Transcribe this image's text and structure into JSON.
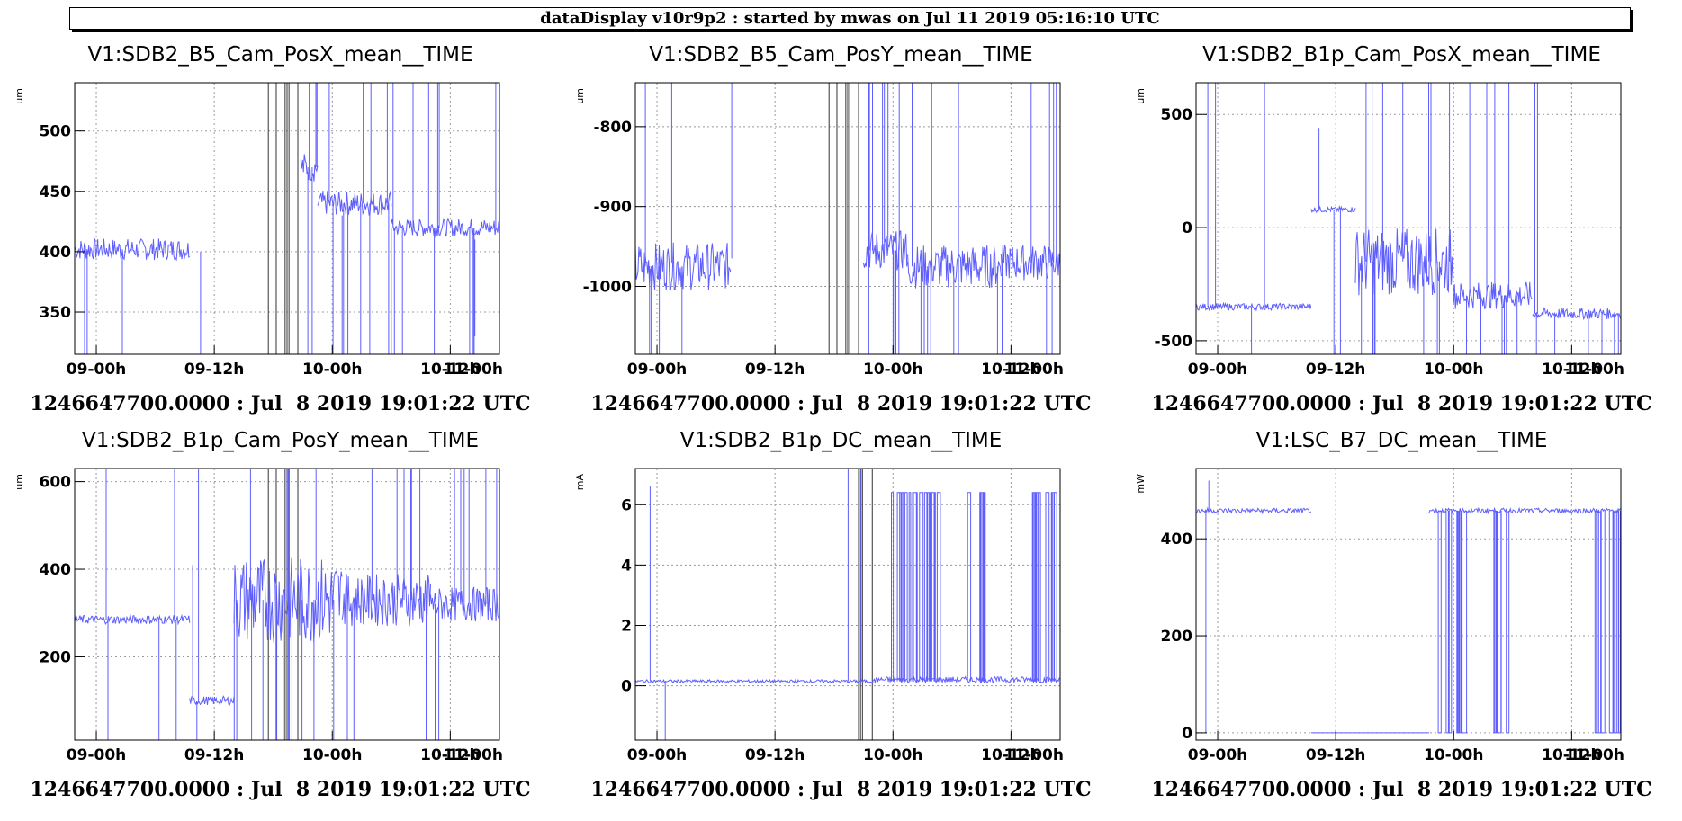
{
  "header": {
    "title": "dataDisplay v10r9p2 : started by mwas on Jul 11 2019 05:16:10 UTC"
  },
  "colors": {
    "series": "#5e5eff",
    "marker": "#555555",
    "grid": "#9a9a9a"
  },
  "chart_data": [
    {
      "type": "line",
      "title": "V1:SDB2_B5_Cam_PosX_mean__TIME",
      "ylabel": "um",
      "footer": "1246647700.0000 : Jul  8 2019 19:01:22 UTC",
      "xlim": [
        -2.2,
        41
      ],
      "ylim": [
        315,
        540
      ],
      "xticks": [
        {
          "value": 0,
          "label": "09-00h"
        },
        {
          "value": 12,
          "label": "09-12h"
        },
        {
          "value": 24,
          "label": "10-00h"
        },
        {
          "value": 36,
          "label": "10-12h"
        },
        {
          "value": 48,
          "label": "11-00h"
        }
      ],
      "yticks": [
        350,
        400,
        450,
        500
      ],
      "markers": [
        17.5,
        18.3,
        19.2,
        19.4,
        19.6,
        20.5
      ],
      "segments": [
        {
          "x": [
            -2.2,
            9.5
          ],
          "level": 402,
          "band": 18,
          "spikes": 4
        },
        {
          "x": [
            9.5,
            24.0
          ],
          "level": null,
          "band": 0,
          "spikes": 0
        },
        {
          "x": [
            20.8,
            22.5
          ],
          "level": 470,
          "band": 25,
          "spikes": 6
        },
        {
          "x": [
            22.5,
            30.0
          ],
          "level": 440,
          "band": 20,
          "spikes": 10
        },
        {
          "x": [
            30.0,
            41.0
          ],
          "level": 420,
          "band": 15,
          "spikes": 12
        }
      ],
      "spikes": [
        {
          "x": 10.6,
          "from": 400,
          "to": 315
        },
        {
          "x": 25.0,
          "from": 430,
          "to": 315
        },
        {
          "x": 33.8,
          "from": 420,
          "to": 540
        },
        {
          "x": 38.5,
          "from": 410,
          "to": 330
        }
      ]
    },
    {
      "type": "line",
      "title": "V1:SDB2_B5_Cam_PosY_mean__TIME",
      "ylabel": "um",
      "footer": "1246647700.0000 : Jul  8 2019 19:01:22 UTC",
      "xlim": [
        -2.2,
        41
      ],
      "ylim": [
        -1085,
        -745
      ],
      "xticks": [
        {
          "value": 0,
          "label": "09-00h"
        },
        {
          "value": 12,
          "label": "09-12h"
        },
        {
          "value": 24,
          "label": "10-00h"
        },
        {
          "value": 36,
          "label": "10-12h"
        },
        {
          "value": 48,
          "label": "11-00h"
        }
      ],
      "yticks": [
        -1000,
        -900,
        -800
      ],
      "markers": [
        17.5,
        18.3,
        19.2,
        19.4,
        19.6,
        20.5
      ],
      "segments": [
        {
          "x": [
            -2.2,
            7.5
          ],
          "level": -975,
          "band": 60,
          "spikes": 6
        },
        {
          "x": [
            7.5,
            21.0
          ],
          "level": null,
          "band": 0,
          "spikes": 0
        },
        {
          "x": [
            21.0,
            25.5
          ],
          "level": -955,
          "band": 50,
          "spikes": 12
        },
        {
          "x": [
            25.5,
            35.0
          ],
          "level": -975,
          "band": 55,
          "spikes": 10
        },
        {
          "x": [
            35.0,
            41.0
          ],
          "level": -970,
          "band": 45,
          "spikes": 8
        }
      ],
      "spikes": [
        {
          "x": 1.5,
          "from": -970,
          "to": -745
        },
        {
          "x": 7.6,
          "from": -965,
          "to": -745
        }
      ]
    },
    {
      "type": "line",
      "title": "V1:SDB2_B1p_Cam_PosX_mean__TIME",
      "ylabel": "um",
      "footer": "1246647700.0000 : Jul  8 2019 19:01:22 UTC",
      "xlim": [
        -2.2,
        41
      ],
      "ylim": [
        -560,
        640
      ],
      "xticks": [
        {
          "value": 0,
          "label": "09-00h"
        },
        {
          "value": 12,
          "label": "09-12h"
        },
        {
          "value": 24,
          "label": "10-00h"
        },
        {
          "value": 36,
          "label": "10-12h"
        },
        {
          "value": 48,
          "label": "11-00h"
        }
      ],
      "yticks": [
        -500,
        0,
        500
      ],
      "markers": [],
      "segments": [
        {
          "x": [
            -2.2,
            9.5
          ],
          "level": -350,
          "band": 30,
          "spikes": 3
        },
        {
          "x": [
            9.5,
            14.0
          ],
          "level": 80,
          "band": 25,
          "spikes": 2
        },
        {
          "x": [
            14.0,
            24.0
          ],
          "level": -150,
          "band": 300,
          "spikes": 14
        },
        {
          "x": [
            24.0,
            32.0
          ],
          "level": -300,
          "band": 120,
          "spikes": 10
        },
        {
          "x": [
            32.0,
            41.0
          ],
          "level": -380,
          "band": 50,
          "spikes": 8
        }
      ],
      "spikes": [
        {
          "x": 10.3,
          "from": 80,
          "to": 440
        },
        {
          "x": -1.0,
          "from": -350,
          "to": 640
        }
      ]
    },
    {
      "type": "line",
      "title": "V1:SDB2_B1p_Cam_PosY_mean__TIME",
      "ylabel": "um",
      "footer": "1246647700.0000 : Jul  8 2019 19:01:22 UTC",
      "xlim": [
        -2.2,
        41
      ],
      "ylim": [
        10,
        630
      ],
      "xticks": [
        {
          "value": 0,
          "label": "09-00h"
        },
        {
          "value": 12,
          "label": "09-12h"
        },
        {
          "value": 24,
          "label": "10-00h"
        },
        {
          "value": 36,
          "label": "10-12h"
        },
        {
          "value": 48,
          "label": "11-00h"
        }
      ],
      "yticks": [
        200,
        400,
        600
      ],
      "markers": [
        17.5,
        18.3,
        19.2,
        19.4,
        19.6,
        20.5
      ],
      "segments": [
        {
          "x": [
            -2.2,
            9.5
          ],
          "level": 285,
          "band": 20,
          "spikes": 4
        },
        {
          "x": [
            9.5,
            14.0
          ],
          "level": 100,
          "band": 20,
          "spikes": 2
        },
        {
          "x": [
            14.0,
            25.0
          ],
          "level": 330,
          "band": 200,
          "spikes": 16
        },
        {
          "x": [
            25.0,
            34.0
          ],
          "level": 330,
          "band": 120,
          "spikes": 10
        },
        {
          "x": [
            34.0,
            41.0
          ],
          "level": 320,
          "band": 80,
          "spikes": 8
        }
      ],
      "spikes": [
        {
          "x": 1.0,
          "from": 285,
          "to": 630
        },
        {
          "x": 9.8,
          "from": 100,
          "to": 410
        }
      ]
    },
    {
      "type": "line",
      "title": "V1:SDB2_B1p_DC_mean__TIME",
      "ylabel": "mA",
      "footer": "1246647700.0000 : Jul  8 2019 19:01:22 UTC",
      "xlim": [
        -2.2,
        41
      ],
      "ylim": [
        -1.8,
        7.2
      ],
      "xticks": [
        {
          "value": 0,
          "label": "09-00h"
        },
        {
          "value": 12,
          "label": "09-12h"
        },
        {
          "value": 24,
          "label": "10-00h"
        },
        {
          "value": 36,
          "label": "10-12h"
        },
        {
          "value": 48,
          "label": "11-00h"
        }
      ],
      "yticks": [
        0,
        2,
        4,
        6
      ],
      "markers": [
        20.5,
        20.7,
        20.9,
        21.9
      ],
      "segments": [
        {
          "x": [
            -2.2,
            22.0
          ],
          "level": 0.15,
          "band": 0.1,
          "spikes": 3
        },
        {
          "x": [
            22.0,
            41.0
          ],
          "level": 0.2,
          "band": 0.2,
          "spikes": 0
        }
      ],
      "bursts": [
        [
          23.0,
          28.5
        ],
        [
          31.5,
          33.5
        ],
        [
          38.0,
          41.0
        ]
      ],
      "burst_level": 6.4,
      "spikes": [
        {
          "x": -0.7,
          "from": 0.15,
          "to": 6.6
        }
      ]
    },
    {
      "type": "line",
      "title": "V1:LSC_B7_DC_mean__TIME",
      "ylabel": "mW",
      "footer": "1246647700.0000 : Jul  8 2019 19:01:22 UTC",
      "xlim": [
        -2.2,
        41
      ],
      "ylim": [
        -15,
        545
      ],
      "xticks": [
        {
          "value": 0,
          "label": "09-00h"
        },
        {
          "value": 12,
          "label": "09-12h"
        },
        {
          "value": 24,
          "label": "10-00h"
        },
        {
          "value": 36,
          "label": "10-12h"
        },
        {
          "value": 48,
          "label": "11-00h"
        }
      ],
      "yticks": [
        0,
        200,
        400
      ],
      "markers": [],
      "segments": [
        {
          "x": [
            -2.2,
            9.5
          ],
          "level": 458,
          "band": 10,
          "spikes": 0
        },
        {
          "x": [
            9.5,
            21.5
          ],
          "level": 0,
          "band": 0,
          "spikes": 0
        },
        {
          "x": [
            21.5,
            41.0
          ],
          "level": 458,
          "band": 10,
          "spikes": 0
        }
      ],
      "bursts": [
        [
          22.0,
          25.0
        ],
        [
          28.0,
          30.0
        ],
        [
          38.0,
          41.0
        ]
      ],
      "burst_level": 0,
      "spikes": [
        {
          "x": -1.2,
          "from": 458,
          "to": 0
        },
        {
          "x": -0.9,
          "from": 458,
          "to": 520
        }
      ]
    }
  ]
}
